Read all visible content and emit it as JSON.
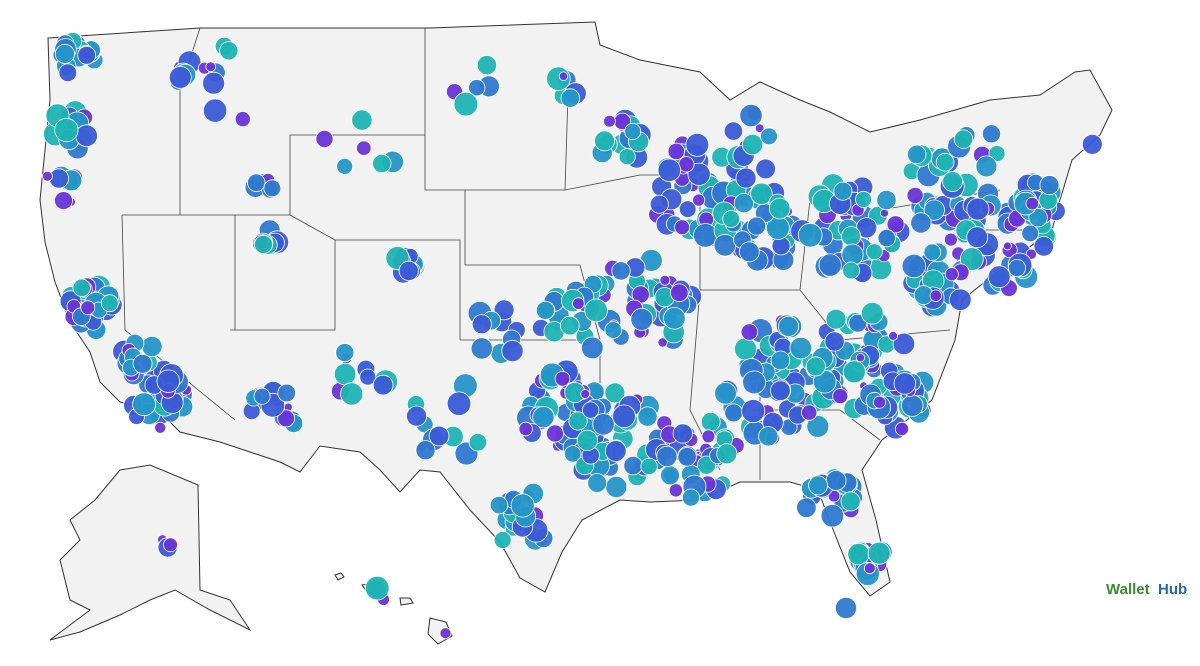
{
  "logo": {
    "wallet": "Wallet",
    "hub": "Hub"
  }
}
